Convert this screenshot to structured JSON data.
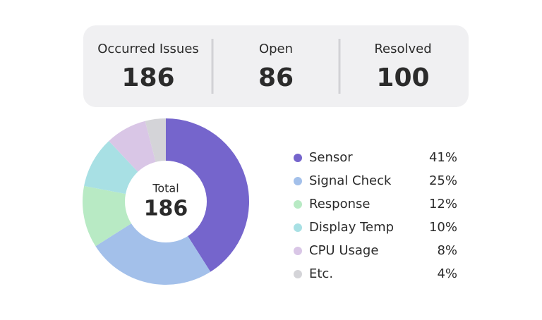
{
  "stats": [
    {
      "label": "Occurred Issues",
      "value": 186
    },
    {
      "label": "Open",
      "value": 86
    },
    {
      "label": "Resolved",
      "value": 100
    }
  ],
  "chart_data": {
    "type": "pie",
    "center_label": "Total",
    "center_value": 186,
    "categories": [
      "Sensor",
      "Signal Check",
      "Response",
      "Display Temp",
      "CPU Usage",
      "Etc."
    ],
    "values": [
      41,
      25,
      12,
      10,
      8,
      4
    ],
    "value_labels": [
      "41%",
      "25%",
      "12%",
      "10%",
      "8%",
      "4%"
    ],
    "colors": [
      "#7565cc",
      "#a3c0ea",
      "#b8eac4",
      "#a8e0e4",
      "#d9c6e6",
      "#d4d4d8"
    ]
  }
}
